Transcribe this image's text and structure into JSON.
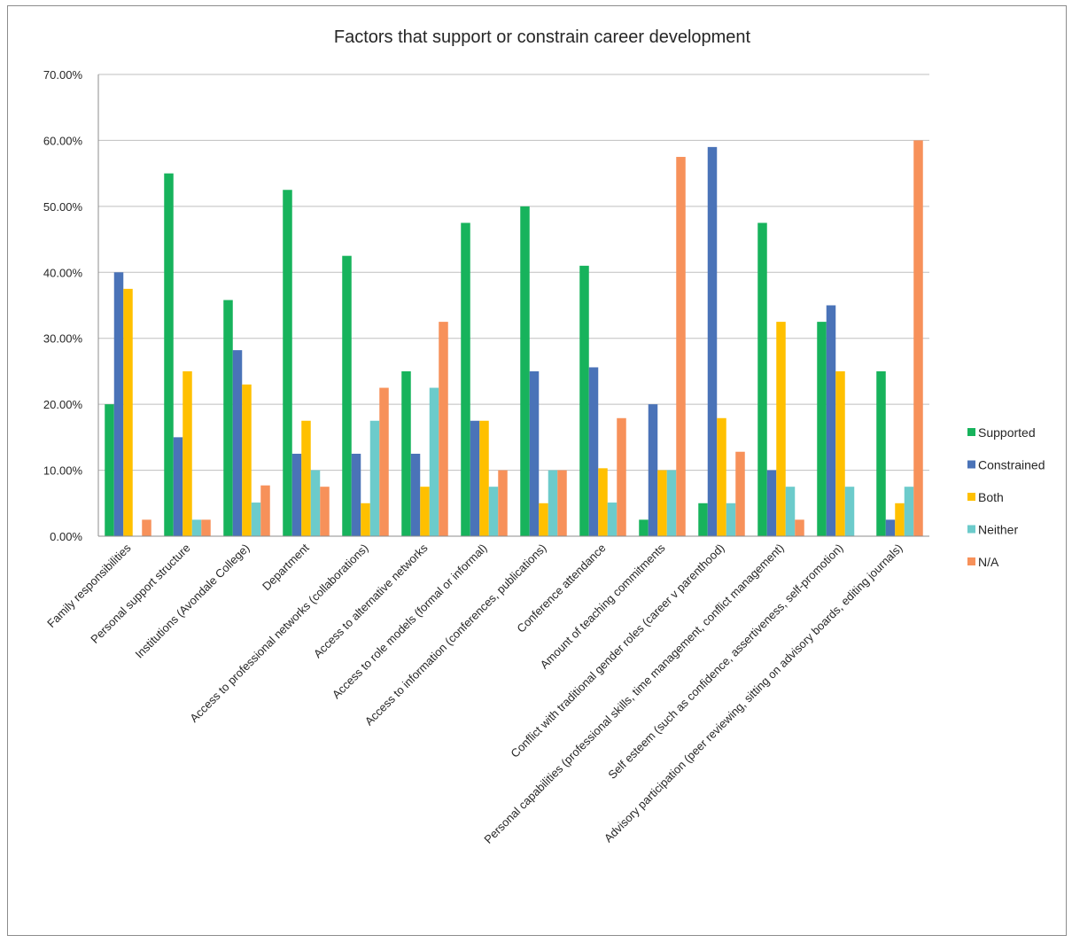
{
  "chart_data": {
    "type": "bar",
    "title": "Factors that support or constrain career development",
    "xlabel": "",
    "ylabel": "",
    "ylim": [
      0,
      0.7
    ],
    "y_ticks": [
      "0.00%",
      "10.00%",
      "20.00%",
      "30.00%",
      "40.00%",
      "50.00%",
      "60.00%",
      "70.00%"
    ],
    "grid": true,
    "legend_position": "right",
    "categories": [
      "Family responsibilities",
      "Personal support structure",
      "Institutions (Avondale College)",
      "Department",
      "Access to professional networks (collaborations)",
      "Access to alternative networks",
      "Access to role models (formal or informal)",
      "Access to information (conferences, publications)",
      "Conference attendance",
      "Amount of teaching commitments",
      "Conflict with traditional gender roles (career v parenthood)",
      "Personal capabilities (professional skills, time management, conflict management)",
      "Self esteem (such as confidence, assertiveness, self-promotion)",
      "Advisory participation (peer reviewing, sitting on advisory boards, editing journals)"
    ],
    "series": [
      {
        "name": "Supported",
        "color": "#17b35c",
        "values": [
          0.2,
          0.55,
          0.358,
          0.525,
          0.425,
          0.25,
          0.475,
          0.5,
          0.41,
          0.025,
          0.05,
          0.475,
          0.325,
          0.25
        ]
      },
      {
        "name": "Constrained",
        "color": "#4a73b8",
        "values": [
          0.4,
          0.15,
          0.282,
          0.125,
          0.125,
          0.125,
          0.175,
          0.25,
          0.256,
          0.2,
          0.59,
          0.1,
          0.35,
          0.025
        ]
      },
      {
        "name": "Both",
        "color": "#ffc000",
        "values": [
          0.375,
          0.25,
          0.23,
          0.175,
          0.05,
          0.075,
          0.175,
          0.05,
          0.103,
          0.1,
          0.179,
          0.325,
          0.25,
          0.05
        ]
      },
      {
        "name": "Neither",
        "color": "#6ccbcb",
        "values": [
          0.0,
          0.025,
          0.051,
          0.1,
          0.175,
          0.225,
          0.075,
          0.1,
          0.051,
          0.1,
          0.05,
          0.075,
          0.075,
          0.075
        ]
      },
      {
        "name": "N/A",
        "color": "#f7915a",
        "values": [
          0.025,
          0.025,
          0.077,
          0.075,
          0.225,
          0.325,
          0.1,
          0.1,
          0.179,
          0.575,
          0.128,
          0.025,
          0.0,
          0.6
        ]
      }
    ]
  }
}
